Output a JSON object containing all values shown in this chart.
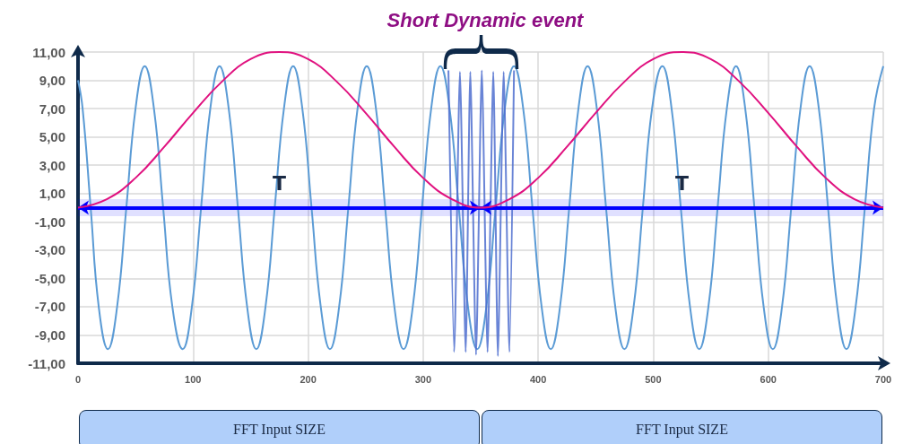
{
  "chart_data": {
    "type": "line",
    "title": "Short Dynamic event",
    "xlim": [
      0,
      700
    ],
    "xticks": [
      0,
      100,
      200,
      300,
      400,
      500,
      600,
      700
    ],
    "ylim": [
      -11,
      11
    ],
    "yticks": [
      {
        "value": -11,
        "label": "-11,00"
      },
      {
        "value": -9,
        "label": "-9,00"
      },
      {
        "value": -7,
        "label": "-7,00"
      },
      {
        "value": -5,
        "label": "-5,00"
      },
      {
        "value": -3,
        "label": "-3,00"
      },
      {
        "value": -1,
        "label": "-1,00"
      },
      {
        "value": 1,
        "label": "1,00"
      },
      {
        "value": 3,
        "label": "3,00"
      },
      {
        "value": 5,
        "label": "5,00"
      },
      {
        "value": 7,
        "label": "7,00"
      },
      {
        "value": 9,
        "label": "9,00"
      },
      {
        "value": 11,
        "label": "11,00"
      }
    ],
    "grid": true,
    "marker": "none",
    "line_style": "solid",
    "series": [
      {
        "color": "#5b9bd5",
        "x": [
          0,
          4,
          11,
          18,
          26,
          34,
          42,
          50,
          58,
          66,
          74,
          82,
          91,
          99,
          107,
          115,
          123,
          131,
          139,
          147,
          155,
          163,
          171,
          179,
          187,
          195,
          203,
          211,
          219,
          227,
          235,
          243,
          251,
          259,
          267,
          275,
          283,
          291,
          299,
          307,
          315,
          323,
          331,
          339,
          347,
          355,
          363,
          371,
          379,
          387,
          395,
          403,
          411,
          419,
          427,
          435,
          443,
          451,
          459,
          467,
          475,
          483,
          491,
          499,
          508,
          516,
          524,
          532,
          540,
          548,
          556,
          564,
          572,
          580,
          588,
          596,
          604,
          612,
          620,
          628,
          636,
          644,
          652,
          660,
          668,
          676,
          684,
          692,
          700
        ],
        "values": [
          9,
          7,
          0,
          -7,
          -10,
          -7,
          0,
          7,
          10,
          7,
          0,
          -7,
          -10,
          -7,
          0,
          7,
          10,
          7,
          0,
          -7,
          -10,
          -7,
          0,
          7,
          10,
          7,
          0,
          -7,
          -10,
          -7,
          0,
          7,
          10,
          7,
          0,
          -7,
          -10,
          -7,
          0,
          7,
          10,
          7,
          0,
          -7,
          -10,
          -7,
          0,
          7,
          10,
          7,
          0,
          -7,
          -10,
          -7,
          0,
          7,
          10,
          7,
          0,
          -7,
          -10,
          -7,
          0,
          7,
          10,
          7,
          0,
          -7,
          -10,
          -7,
          0,
          7,
          10,
          7,
          0,
          -7,
          -10,
          -7,
          0,
          7,
          10,
          7,
          0,
          -7,
          -10,
          -7,
          0,
          7,
          10
        ]
      },
      {
        "color": "#4f6fcf",
        "x": [
          322,
          327,
          332,
          337,
          341,
          346,
          351,
          356,
          361,
          365,
          370,
          375,
          379
        ],
        "values": [
          9.7,
          -10.2,
          9.6,
          -10.2,
          9.6,
          -10.4,
          9.7,
          -10.2,
          9.6,
          -10.5,
          9.6,
          -10.2,
          9.7
        ]
      },
      {
        "color": "#e0117f",
        "x": [
          0,
          25,
          50,
          75,
          100,
          125,
          150,
          175,
          200,
          225,
          250,
          275,
          300,
          325,
          350,
          375,
          400,
          425,
          450,
          475,
          500,
          525,
          550,
          575,
          600,
          625,
          650,
          675,
          700
        ],
        "values": [
          0,
          0.6,
          2.1,
          4.3,
          6.7,
          8.9,
          10.5,
          11,
          10.5,
          8.9,
          6.7,
          4.3,
          2.1,
          0.6,
          0,
          0.6,
          2.1,
          4.3,
          6.7,
          8.9,
          10.5,
          11,
          10.5,
          8.9,
          6.7,
          4.3,
          2.1,
          0.6,
          0
        ]
      }
    ],
    "bands": [
      {
        "axis": "x",
        "from": 0,
        "to": 350,
        "label": "T",
        "color": "#0000ff"
      },
      {
        "axis": "x",
        "from": 350,
        "to": 700,
        "label": "T",
        "color": "#0000ff"
      }
    ],
    "annotations": [
      "FFT Input SIZE",
      "FFT Input SIZE"
    ]
  }
}
